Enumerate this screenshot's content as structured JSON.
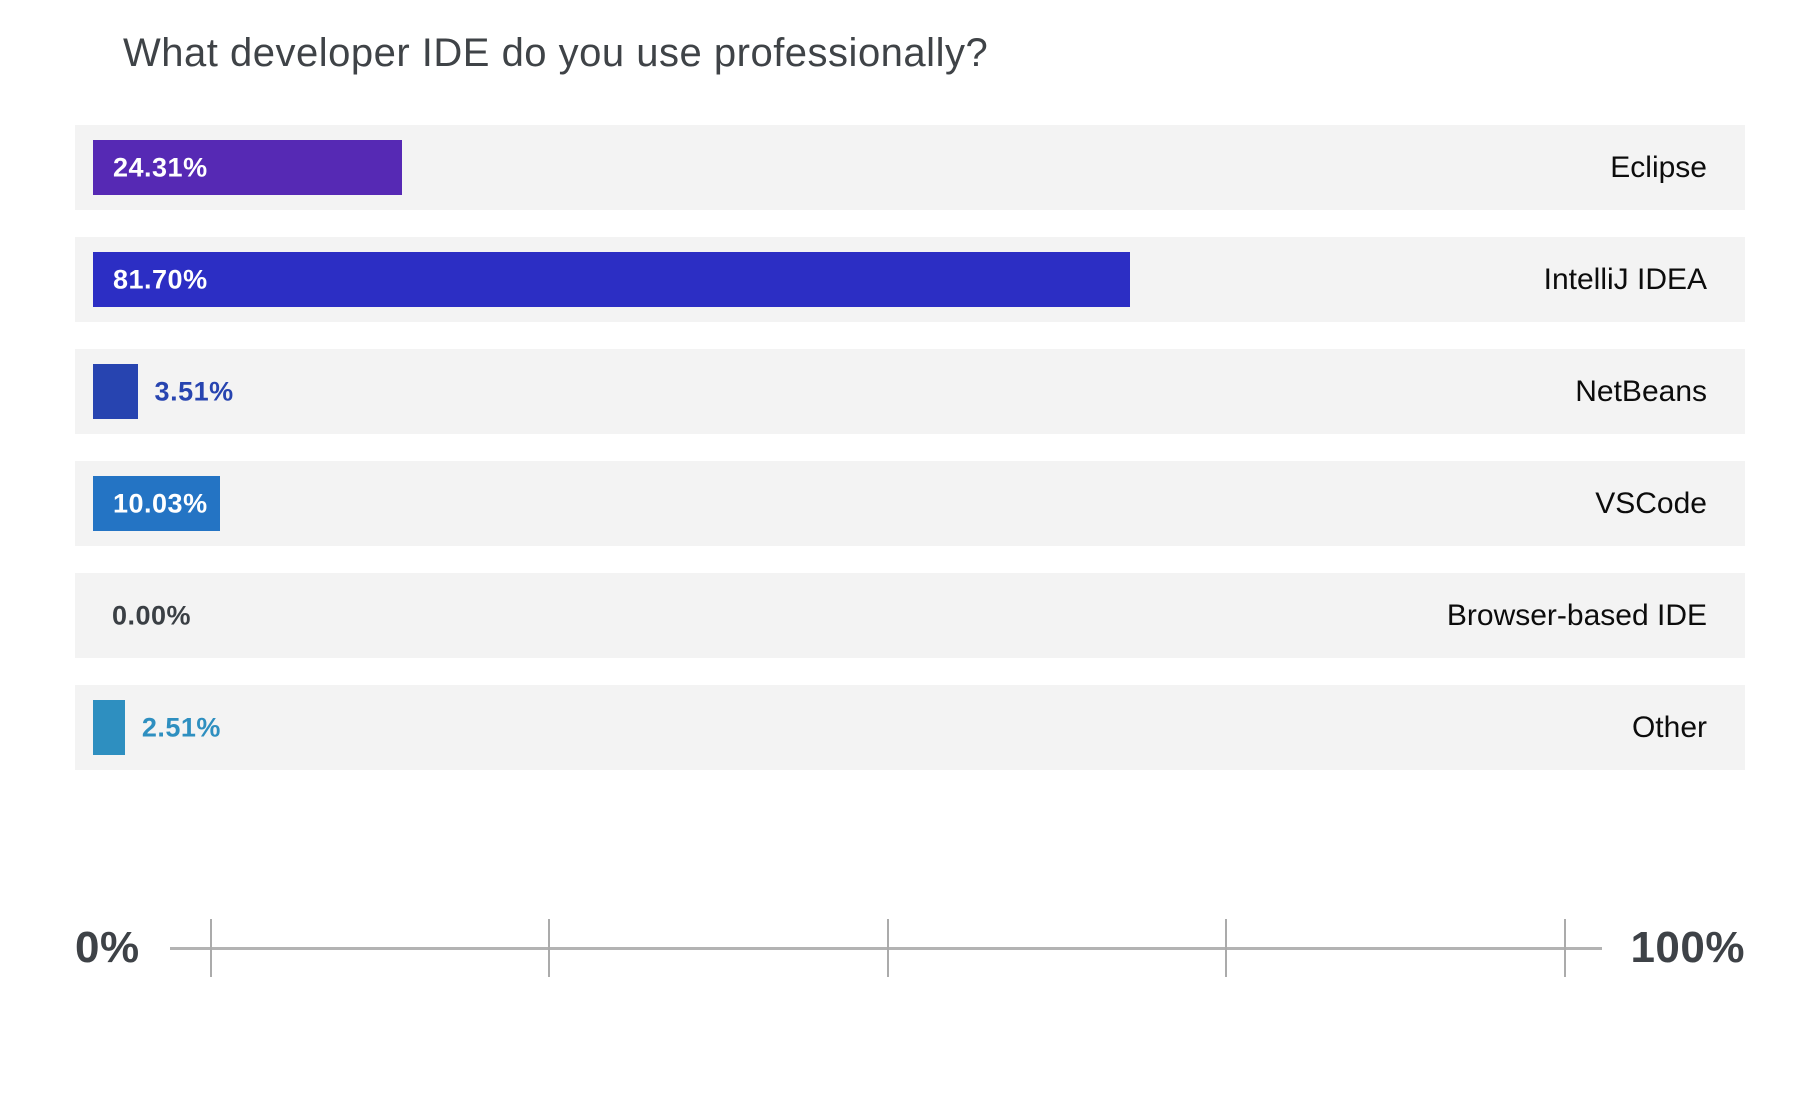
{
  "title": "What developer IDE do you use professionally?",
  "axis": {
    "min_label": "0%",
    "max_label": "100%",
    "tick_count": 5
  },
  "colors": {
    "row_background": "#f3f3f3",
    "title_text": "#3f4347",
    "category_text": "#0c0c0c",
    "axis_text": "#3e4247",
    "axis_line": "#b3b3b3",
    "zero_label_text": "#3a3f44",
    "inside_label_text": "#ffffff"
  },
  "chart_data": {
    "type": "bar",
    "orientation": "horizontal",
    "title": "What developer IDE do you use professionally?",
    "xlabel": "",
    "ylabel": "",
    "xlim": [
      0,
      100
    ],
    "grid": false,
    "legend": false,
    "categories": [
      "Eclipse",
      "IntelliJ IDEA",
      "NetBeans",
      "VSCode",
      "Browser-based IDE",
      "Other"
    ],
    "values": [
      24.31,
      81.7,
      3.51,
      10.03,
      0.0,
      2.51
    ],
    "value_labels": [
      "24.31%",
      "81.70%",
      "3.51%",
      "10.03%",
      "0.00%",
      "2.51%"
    ],
    "bar_colors": [
      "#5629b4",
      "#2c2ec4",
      "#2744b0",
      "#2474c4",
      "#f3f3f3",
      "#2e8fc0"
    ],
    "axis_tick_labels": [
      "0%",
      "100%"
    ]
  }
}
